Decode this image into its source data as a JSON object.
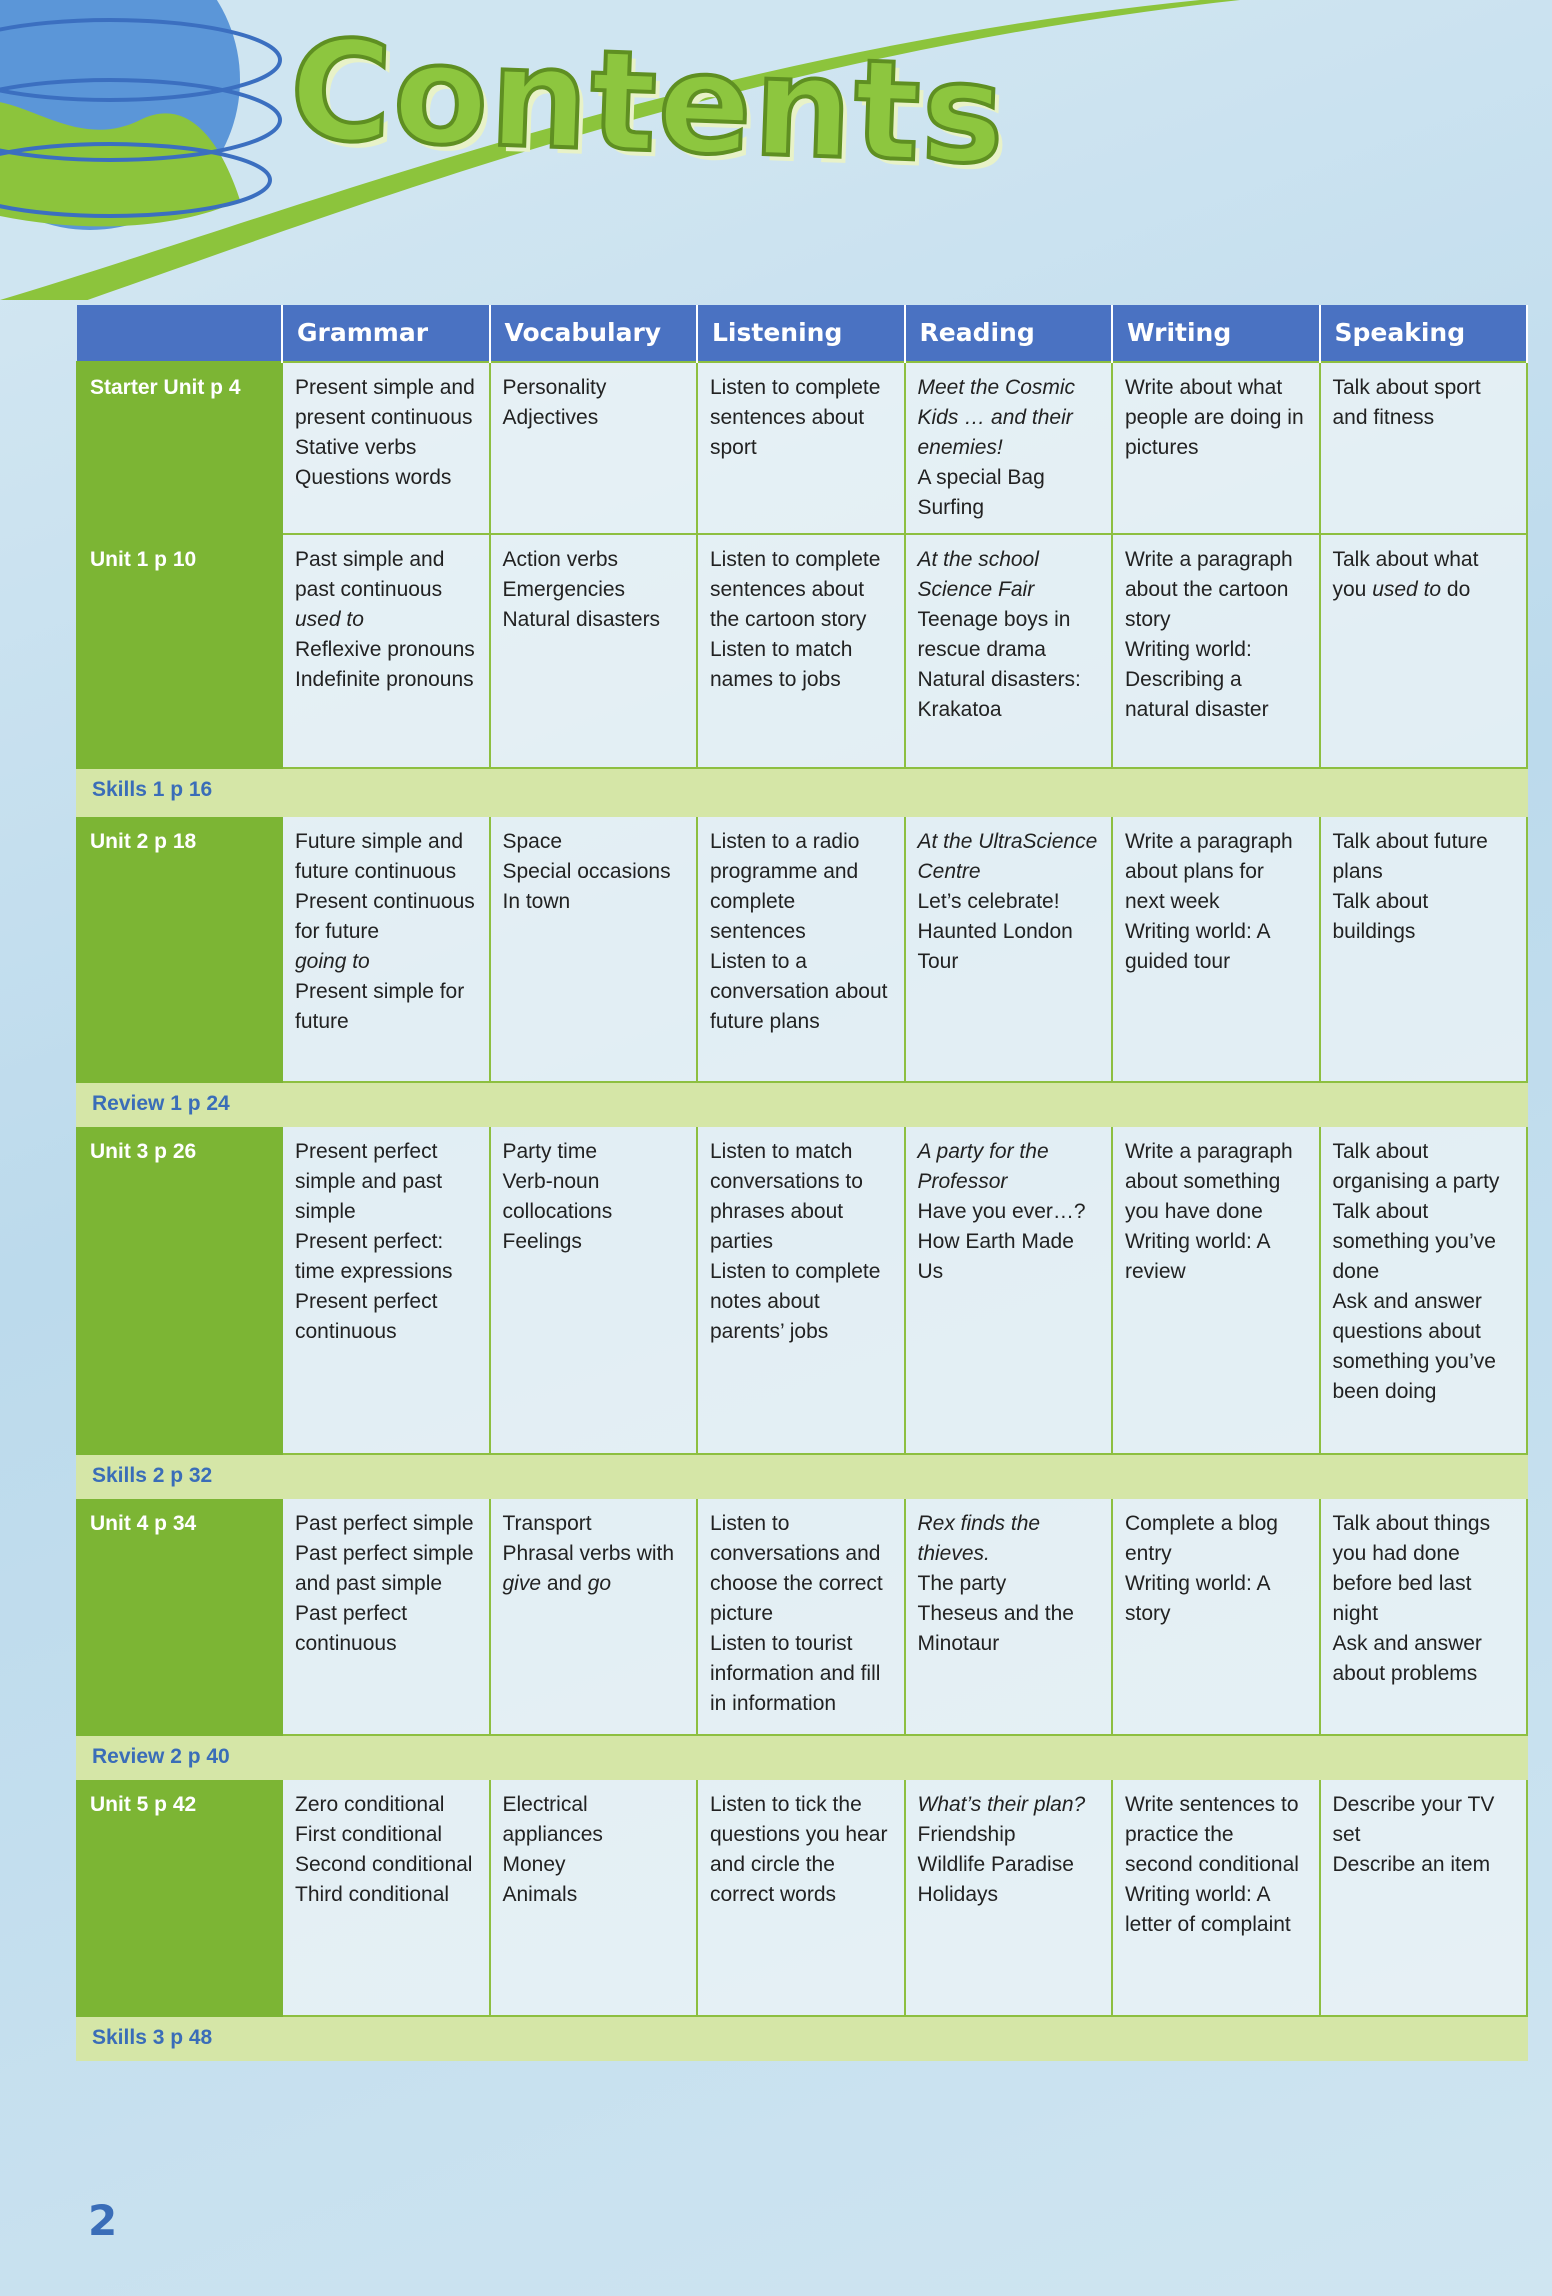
{
  "title": "Contents",
  "page_number": "2",
  "table": {
    "columns": [
      "Grammar",
      "Vocabulary",
      "Listening",
      "Reading",
      "Writing",
      "Speaking"
    ],
    "rows": [
      {
        "label": "Starter Unit p 4",
        "cells": [
          [
            "Present simple and present continuous",
            "Stative verbs",
            "Questions words"
          ],
          [
            "Personality Adjectives"
          ],
          [
            "Listen to complete sentences about sport"
          ],
          [
            {
              "italic": "Meet the Cosmic Kids … and their enemies!"
            },
            "A special Bag",
            "Surfing"
          ],
          [
            "Write about what people are doing in pictures"
          ],
          [
            "Talk about sport and fitness"
          ]
        ]
      },
      {
        "label": "Unit 1 p 10",
        "cells": [
          [
            "Past simple and past continuous",
            {
              "italic": "used to"
            },
            "Reflexive pronouns",
            "Indefinite pronouns"
          ],
          [
            "Action verbs",
            "Emergencies",
            "Natural disasters"
          ],
          [
            "Listen to complete sentences about the cartoon story",
            "Listen to match names to jobs"
          ],
          [
            {
              "italic": "At the school Science Fair"
            },
            "Teenage boys in rescue drama",
            "Natural disasters: Krakatoa"
          ],
          [
            "Write a paragraph about the cartoon story",
            "Writing world: Describing a natural disaster"
          ],
          [
            [
              "Talk about what you ",
              {
                "italic": "used to"
              },
              " do"
            ]
          ]
        ]
      },
      {
        "label": "Skills 1 p 16"
      },
      {
        "label": "Unit 2 p 18",
        "cells": [
          [
            "Future simple and future continuous",
            "Present continuous for future",
            {
              "italic": "going to"
            },
            "Present simple for future"
          ],
          [
            "Space",
            "Special occasions",
            "In town"
          ],
          [
            "Listen to a radio programme and complete sentences",
            "Listen to a conversation about future plans"
          ],
          [
            {
              "italic": "At the UltraScience Centre"
            },
            "Let’s celebrate!",
            "Haunted London Tour"
          ],
          [
            "Write a paragraph about plans for next week",
            "Writing world: A guided tour"
          ],
          [
            "Talk about future plans",
            "Talk about buildings"
          ]
        ]
      },
      {
        "label": "Review 1 p 24"
      },
      {
        "label": "Unit 3 p 26",
        "cells": [
          [
            "Present perfect simple and past simple",
            "Present perfect: time expressions",
            "Present perfect continuous"
          ],
          [
            "Party time",
            "Verb-noun collocations",
            "Feelings"
          ],
          [
            "Listen to match conversations to phrases about parties",
            "Listen to complete notes about parents’ jobs"
          ],
          [
            {
              "italic": "A party for the Professor"
            },
            "Have you ever…?",
            "How Earth Made Us"
          ],
          [
            "Write a paragraph about something you have done",
            "Writing world: A review"
          ],
          [
            "Talk about organising a party",
            "Talk about something you’ve done",
            "Ask and answer questions about something you’ve been doing"
          ]
        ]
      },
      {
        "label": "Skills 2 p 32"
      },
      {
        "label": "Unit 4 p 34",
        "cells": [
          [
            "Past perfect simple",
            "Past perfect simple and past simple",
            "Past perfect continuous"
          ],
          [
            "Transport",
            [
              "Phrasal verbs with ",
              {
                "italic": "give"
              },
              " and ",
              {
                "italic": "go"
              }
            ]
          ],
          [
            "Listen to conversations and choose the correct picture",
            "Listen to tourist information and fill in information"
          ],
          [
            {
              "italic": "Rex finds the thieves."
            },
            "The party",
            "Theseus and the Minotaur"
          ],
          [
            "Complete a blog entry",
            "Writing world: A story"
          ],
          [
            "Talk about things you had done before bed last night",
            "Ask and answer about problems"
          ]
        ]
      },
      {
        "label": "Review 2 p 40"
      },
      {
        "label": "Unit 5 p 42",
        "cells": [
          [
            "Zero conditional",
            "First conditional",
            "Second conditional",
            "Third conditional"
          ],
          [
            "Electrical appliances",
            "Money",
            "Animals"
          ],
          [
            "Listen to tick the questions you hear and circle the correct words"
          ],
          [
            {
              "italic": "What’s their plan?"
            },
            "Friendship",
            "Wildlife Paradise Holidays"
          ],
          [
            "Write sentences to practice the second conditional",
            "Writing world: A letter of complaint"
          ],
          [
            "Describe your TV set",
            "Describe an item"
          ]
        ]
      },
      {
        "label": "Skills 3 p 48"
      }
    ]
  }
}
